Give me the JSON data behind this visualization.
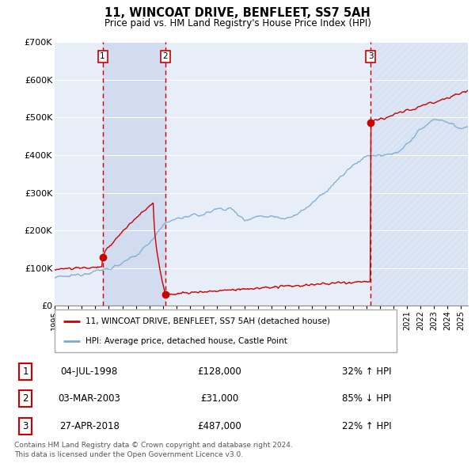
{
  "title": "11, WINCOAT DRIVE, BENFLEET, SS7 5AH",
  "subtitle": "Price paid vs. HM Land Registry's House Price Index (HPI)",
  "background_color": "#ffffff",
  "plot_bg_color": "#e8eef8",
  "grid_color": "#ffffff",
  "xmin": 1995.0,
  "xmax": 2025.5,
  "ymin": 0,
  "ymax": 700000,
  "yticks": [
    0,
    100000,
    200000,
    300000,
    400000,
    500000,
    600000,
    700000
  ],
  "ytick_labels": [
    "£0",
    "£100K",
    "£200K",
    "£300K",
    "£400K",
    "£500K",
    "£600K",
    "£700K"
  ],
  "xtick_years": [
    1995,
    1996,
    1997,
    1998,
    1999,
    2000,
    2001,
    2002,
    2003,
    2004,
    2005,
    2006,
    2007,
    2008,
    2009,
    2010,
    2011,
    2012,
    2013,
    2014,
    2015,
    2016,
    2017,
    2018,
    2019,
    2020,
    2021,
    2022,
    2023,
    2024,
    2025
  ],
  "sale_color": "#cc0000",
  "hpi_color": "#7aaad0",
  "sale_label": "11, WINCOAT DRIVE, BENFLEET, SS7 5AH (detached house)",
  "hpi_label": "HPI: Average price, detached house, Castle Point",
  "transactions": [
    {
      "num": 1,
      "date_x": 1998.54,
      "price": 128000,
      "label": "1",
      "pct": "32%",
      "dir": "↑",
      "date_str": "04-JUL-1998"
    },
    {
      "num": 2,
      "date_x": 2003.17,
      "price": 31000,
      "label": "2",
      "pct": "85%",
      "dir": "↓",
      "date_str": "03-MAR-2003"
    },
    {
      "num": 3,
      "date_x": 2018.33,
      "price": 487000,
      "label": "3",
      "pct": "22%",
      "dir": "↑",
      "date_str": "27-APR-2018"
    }
  ],
  "footer": "Contains HM Land Registry data © Crown copyright and database right 2024.\nThis data is licensed under the Open Government Licence v3.0.",
  "shade1_start": 1998.54,
  "shade1_end": 2003.17,
  "shade2_start": 2018.33,
  "shade2_end": 2025.5
}
